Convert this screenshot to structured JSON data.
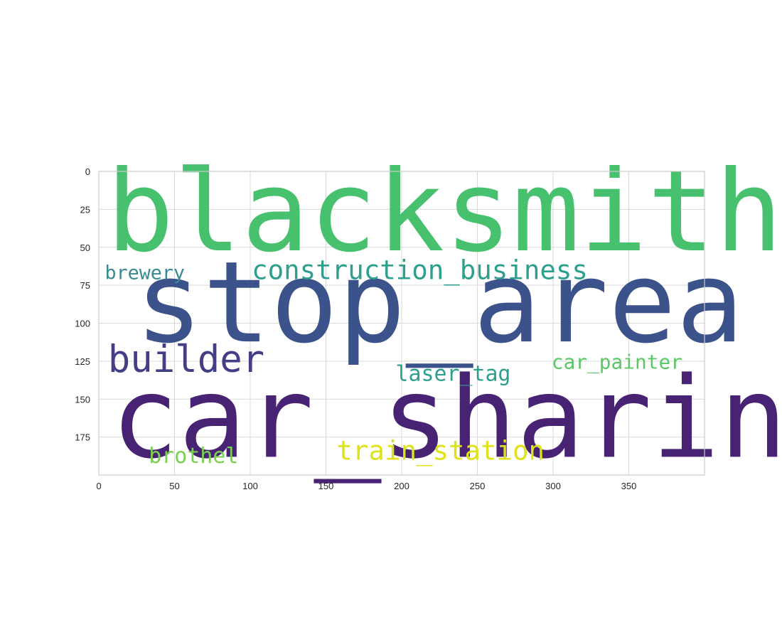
{
  "chart_data": {
    "type": "wordcloud",
    "title": "",
    "xlabel": "",
    "ylabel": "",
    "xlim": [
      0,
      400
    ],
    "ylim": [
      200,
      0
    ],
    "x_ticks": [
      0,
      50,
      100,
      150,
      200,
      250,
      300,
      350
    ],
    "y_ticks": [
      0,
      25,
      50,
      75,
      100,
      125,
      150,
      175
    ],
    "grid": true,
    "colormap": "viridis",
    "words": [
      {
        "text": "blacksmith",
        "x": 5,
        "y": 52,
        "size": 74,
        "color": "#47c16e"
      },
      {
        "text": "stop_area",
        "x": 24,
        "y": 112,
        "size": 74,
        "color": "#3b528b"
      },
      {
        "text": "car_sharing",
        "x": 8,
        "y": 188,
        "size": 74,
        "color": "#482374"
      },
      {
        "text": "construction_business",
        "x": 101,
        "y": 71,
        "size": 17.5,
        "color": "#2e9f8c"
      },
      {
        "text": "brewery",
        "x": 4,
        "y": 71,
        "size": 12.5,
        "color": "#3a8a92"
      },
      {
        "text": "builder",
        "x": 6,
        "y": 132,
        "size": 24.5,
        "color": "#433e85"
      },
      {
        "text": "laser_tag",
        "x": 196,
        "y": 138,
        "size": 14,
        "color": "#2e9f8c"
      },
      {
        "text": "car_painter",
        "x": 299,
        "y": 130,
        "size": 13,
        "color": "#5ac864"
      },
      {
        "text": "brothel",
        "x": 33,
        "y": 192,
        "size": 14,
        "color": "#7ad151"
      },
      {
        "text": "train_station",
        "x": 157,
        "y": 190,
        "size": 17.5,
        "color": "#dde318"
      }
    ]
  }
}
